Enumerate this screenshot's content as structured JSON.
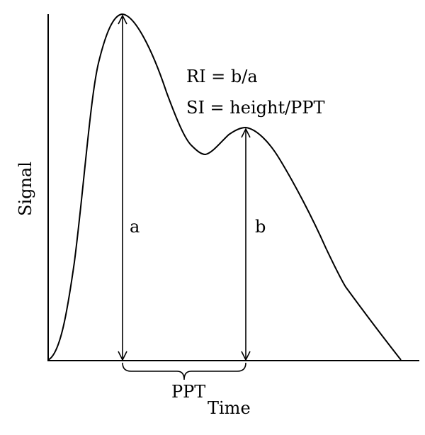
{
  "axes": {
    "x_label": "Time",
    "y_label": "Signal"
  },
  "formulas": {
    "ri": "RI = b/a",
    "si": "SI = height/PPT"
  },
  "markers": {
    "a": "a",
    "b": "b",
    "ppt": "PPT"
  },
  "colors": {
    "line": "#000000",
    "background": "#ffffff"
  }
}
